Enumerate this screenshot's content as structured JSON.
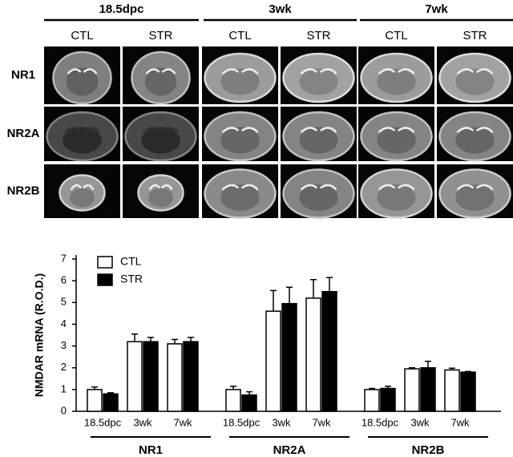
{
  "panel": {
    "ages": [
      "18.5dpc",
      "3wk",
      "7wk"
    ],
    "conditions": [
      "CTL",
      "STR",
      "CTL",
      "STR",
      "CTL",
      "STR"
    ],
    "rows": [
      "NR1",
      "NR2A",
      "NR2B"
    ]
  },
  "chart_data": {
    "type": "bar",
    "ylabel": "NMDAR mRNA (R.O.D.)",
    "categories": [
      "18.5dpc",
      "3wk",
      "7wk",
      "18.5dpc",
      "3wk",
      "7wk",
      "18.5dpc",
      "3wk",
      "7wk"
    ],
    "groups": [
      "NR1",
      "NR2A",
      "NR2B"
    ],
    "series": [
      {
        "name": "CTL",
        "color": "#ffffff",
        "values": [
          1.0,
          3.2,
          3.1,
          1.0,
          4.6,
          5.2,
          1.0,
          1.95,
          1.9
        ],
        "errors": [
          0.12,
          0.35,
          0.2,
          0.15,
          0.95,
          0.85,
          0.05,
          0.05,
          0.08
        ]
      },
      {
        "name": "STR",
        "color": "#000000",
        "values": [
          0.8,
          3.2,
          3.2,
          0.75,
          4.95,
          5.5,
          1.05,
          2.0,
          1.8
        ],
        "errors": [
          0.05,
          0.2,
          0.2,
          0.15,
          0.75,
          0.65,
          0.1,
          0.3,
          0.03
        ]
      }
    ],
    "ylim": [
      0,
      7
    ],
    "yticks": [
      0,
      1,
      2,
      3,
      4,
      5,
      6,
      7
    ],
    "legend": "upper left"
  }
}
